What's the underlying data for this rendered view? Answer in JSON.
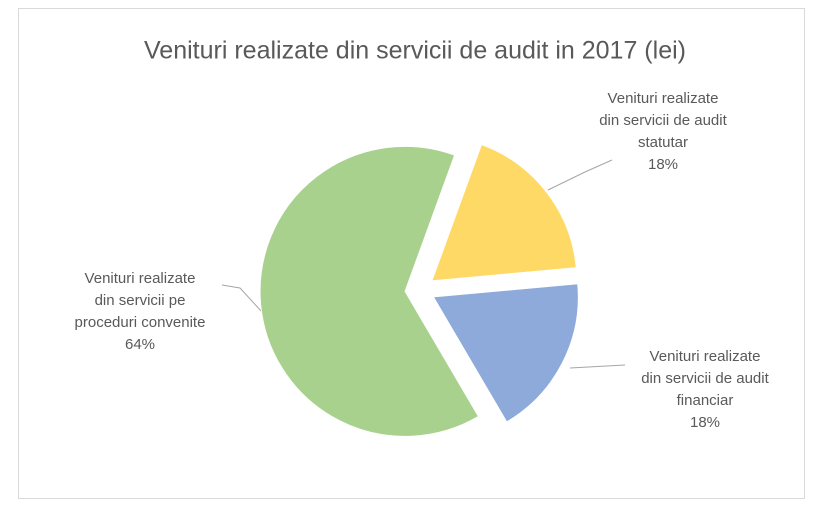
{
  "chart_data": {
    "type": "pie",
    "title": "Venituri realizate din servicii de audit in 2017 (lei)",
    "categories": [
      "Venituri realizate din servicii de audit statutar",
      "Venituri realizate din servicii de audit financiar",
      "Venituri realizate din servicii pe proceduri convenite"
    ],
    "values": [
      18,
      18,
      64
    ],
    "value_labels": [
      "18%",
      "18%",
      "64%"
    ],
    "colors": [
      "#ffd966",
      "#8eaadb",
      "#a9d18e"
    ]
  }
}
